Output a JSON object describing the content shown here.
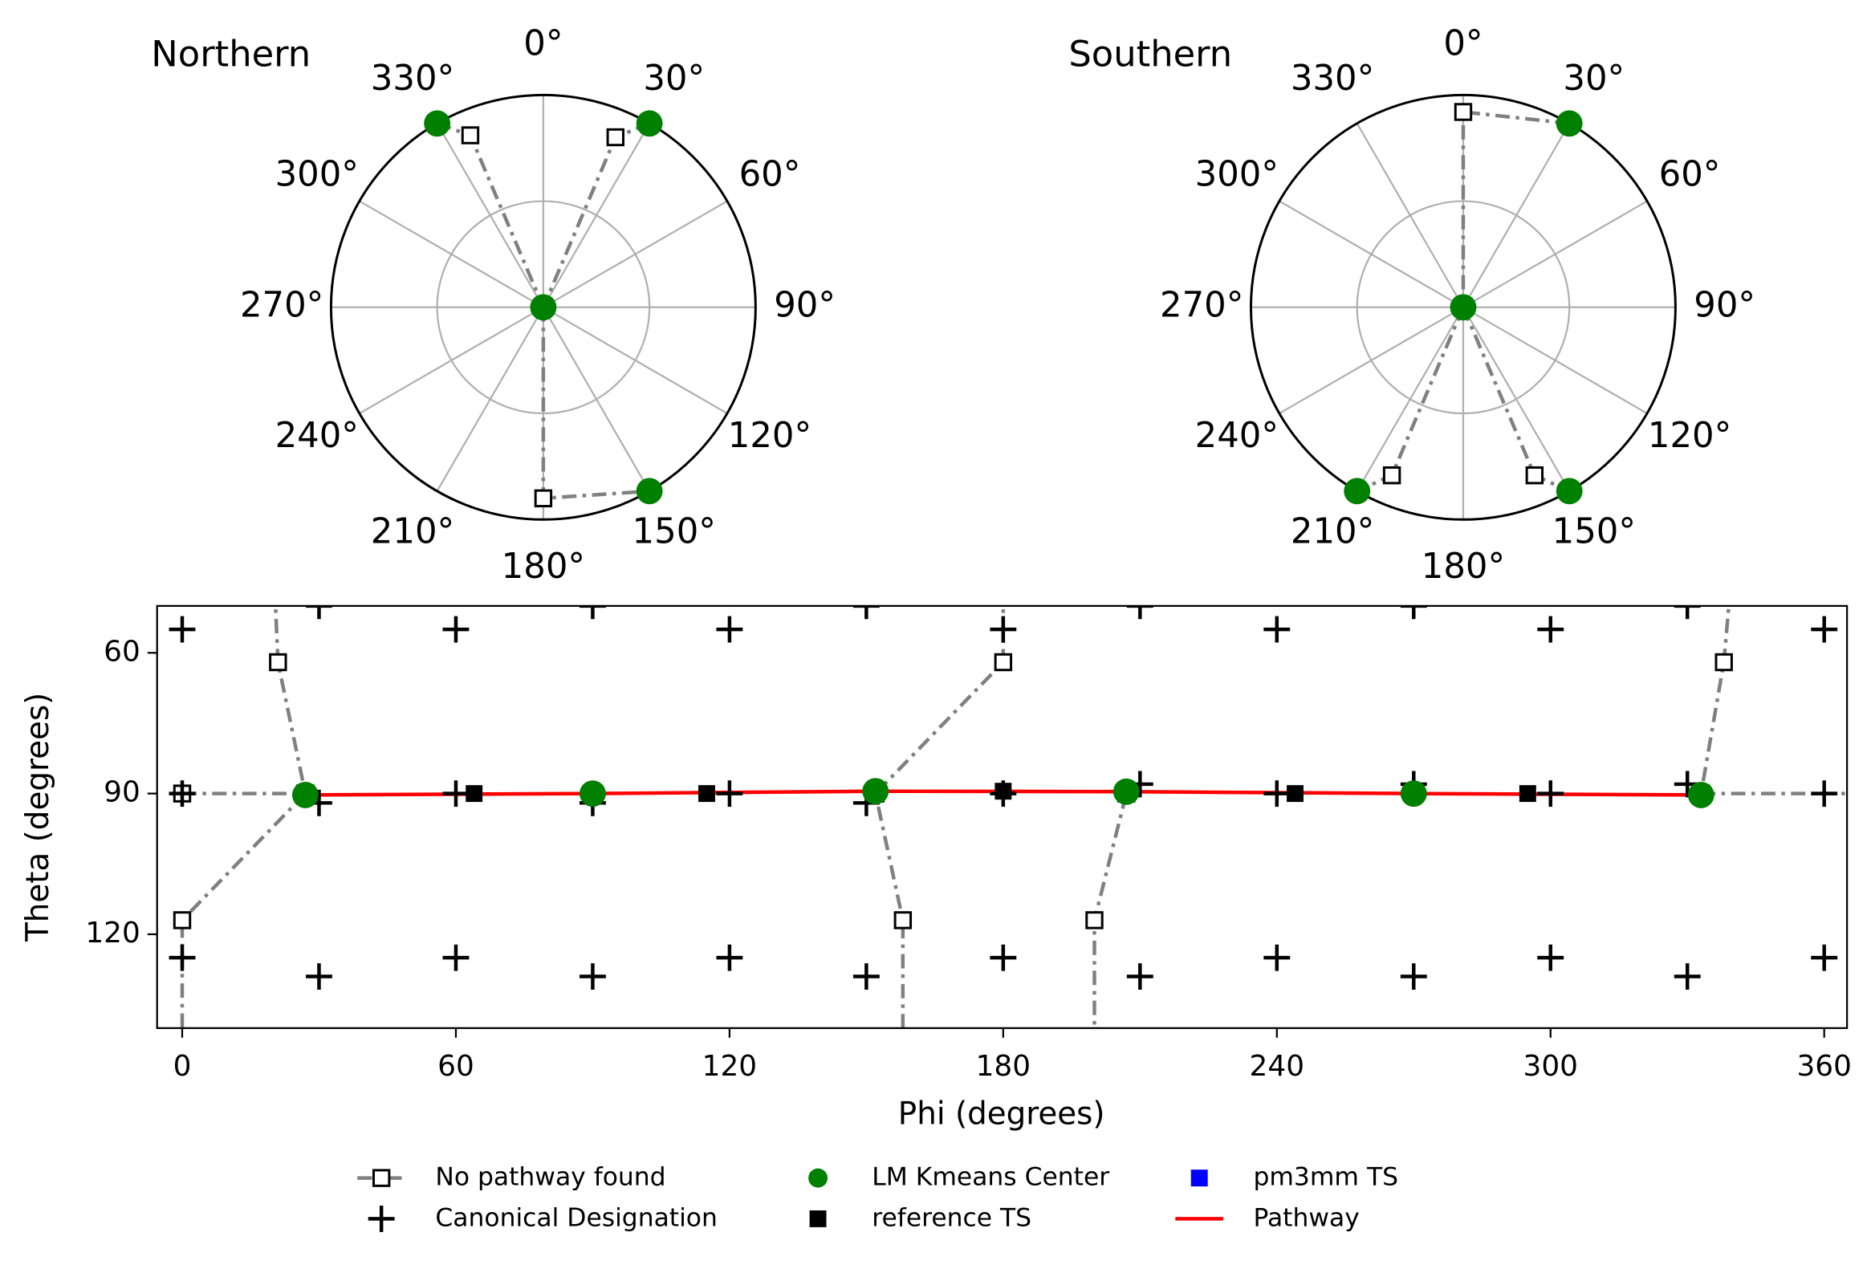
{
  "chart_data": [
    {
      "type": "polar",
      "title": "Northern",
      "thetaticks": [
        {
          "value": 0,
          "label": "0°"
        },
        {
          "value": 30,
          "label": "30°"
        },
        {
          "value": 60,
          "label": "60°"
        },
        {
          "value": 90,
          "label": "90°"
        },
        {
          "value": 120,
          "label": "120°"
        },
        {
          "value": 150,
          "label": "150°"
        },
        {
          "value": 180,
          "label": "180°"
        },
        {
          "value": 210,
          "label": "210°"
        },
        {
          "value": 240,
          "label": "240°"
        },
        {
          "value": 270,
          "label": "270°"
        },
        {
          "value": 300,
          "label": "300°"
        },
        {
          "value": 330,
          "label": "330°"
        }
      ],
      "rlim": [
        0,
        1
      ],
      "rticks": [
        0.5
      ],
      "grid": true,
      "series": [
        {
          "color": "#808080",
          "line": "dashdot",
          "marker": "square-open",
          "theta": [
            330,
            337,
            0,
            null,
            30,
            23,
            0,
            null,
            0,
            180,
            150
          ],
          "r": [
            1,
            0.88,
            0,
            null,
            1,
            0.87,
            0,
            null,
            0,
            0.9,
            1
          ]
        },
        {
          "color": "#008000",
          "line": null,
          "marker": "circle",
          "theta": [
            0,
            330,
            30,
            150
          ],
          "r": [
            0,
            1,
            1,
            1
          ]
        }
      ]
    },
    {
      "type": "polar",
      "title": "Southern",
      "thetaticks": [
        {
          "value": 0,
          "label": "0°"
        },
        {
          "value": 30,
          "label": "30°"
        },
        {
          "value": 60,
          "label": "60°"
        },
        {
          "value": 90,
          "label": "90°"
        },
        {
          "value": 120,
          "label": "120°"
        },
        {
          "value": 150,
          "label": "150°"
        },
        {
          "value": 180,
          "label": "180°"
        },
        {
          "value": 210,
          "label": "210°"
        },
        {
          "value": 240,
          "label": "240°"
        },
        {
          "value": 270,
          "label": "270°"
        },
        {
          "value": 300,
          "label": "300°"
        },
        {
          "value": 330,
          "label": "330°"
        }
      ],
      "rlim": [
        0,
        1
      ],
      "rticks": [
        0.5
      ],
      "grid": true,
      "series": [
        {
          "color": "#808080",
          "line": "dashdot",
          "marker": "square-open",
          "theta": [
            30,
            0,
            0,
            null,
            0,
            203,
            210,
            null,
            0,
            157,
            150
          ],
          "r": [
            1,
            0.92,
            0,
            null,
            0,
            0.86,
            1,
            null,
            0,
            0.86,
            1
          ]
        },
        {
          "color": "#008000",
          "line": null,
          "marker": "circle",
          "theta": [
            0,
            30,
            150,
            210
          ],
          "r": [
            0,
            1,
            1,
            1
          ]
        }
      ]
    },
    {
      "type": "scatter",
      "xlabel": "Phi (degrees)",
      "ylabel": "Theta (degrees)",
      "xlim": [
        -5.5,
        365
      ],
      "ylim": [
        140,
        50
      ],
      "xticks": [
        0,
        60,
        120,
        180,
        240,
        300,
        360
      ],
      "yticks": [
        60,
        90,
        120
      ],
      "legend": "lower center",
      "series": [
        {
          "name": "No pathway found",
          "color": "#808080",
          "line": "dashdot",
          "marker": "square-open",
          "x": [
            20,
            21,
            27,
            null,
            0,
            27,
            null,
            27,
            0,
            0,
            null,
            180,
            180,
            152,
            158,
            158,
            null,
            200,
            200,
            207,
            null,
            340,
            338,
            333,
            null,
            333,
            370
          ],
          "y": [
            40,
            62,
            90,
            null,
            90,
            90,
            null,
            90,
            117,
            150,
            null,
            40,
            62,
            90,
            117,
            150,
            null,
            150,
            117,
            90,
            null,
            40,
            62,
            90,
            null,
            90,
            90
          ]
        },
        {
          "name": "Canonical Designation",
          "color": "#000000",
          "line": null,
          "marker": "plus",
          "x": [
            0,
            30,
            60,
            90,
            120,
            150,
            180,
            210,
            240,
            270,
            300,
            330,
            360,
            0,
            30,
            60,
            90,
            120,
            150,
            180,
            210,
            240,
            270,
            300,
            330,
            360,
            0,
            30,
            60,
            90,
            120,
            150,
            180,
            210,
            240,
            270,
            300,
            330,
            360
          ],
          "y": [
            55,
            50,
            55,
            50,
            55,
            50,
            55,
            50,
            55,
            50,
            55,
            50,
            55,
            90,
            92,
            90,
            92,
            90,
            92,
            90,
            88,
            90,
            88,
            90,
            88,
            90,
            125,
            129,
            125,
            129,
            125,
            129,
            125,
            129,
            125,
            129,
            125,
            129,
            125
          ]
        },
        {
          "name": "LM Kmeans Center",
          "color": "#008000",
          "line": null,
          "marker": "circle",
          "x": [
            27,
            90,
            152,
            207,
            270,
            333
          ],
          "y": [
            90.3,
            90,
            89.5,
            89.6,
            90,
            90.3
          ]
        },
        {
          "name": "reference TS",
          "color": "#000000",
          "line": null,
          "marker": "square",
          "x": [
            64,
            115,
            180,
            244,
            295
          ],
          "y": [
            90,
            90,
            89.5,
            90,
            90
          ]
        },
        {
          "name": "pm3mm TS",
          "color": "#0000ff",
          "line": null,
          "marker": "square",
          "x": [],
          "y": []
        },
        {
          "name": "Pathway",
          "color": "#ff0000",
          "line": "solid",
          "marker": null,
          "x": [
            27,
            90,
            152,
            207,
            270,
            333
          ],
          "y": [
            90.3,
            90,
            89.5,
            89.6,
            90,
            90.3
          ]
        }
      ]
    }
  ]
}
